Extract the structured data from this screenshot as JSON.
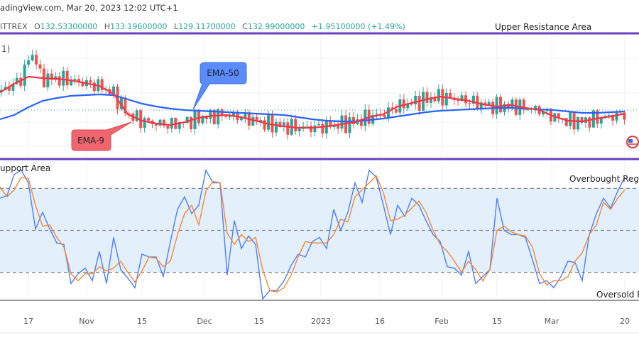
{
  "header": {
    "source_text": "adingView.com, Mar 20, 2023 12:02 UTC+1"
  },
  "ohlc": {
    "exchange": "ITTREX",
    "open_label": "O",
    "open": "132.53300000",
    "high_label": "H",
    "high": "133.19600000",
    "low_label": "L",
    "low": "129.11700000",
    "close_label": "C",
    "close": "132.99000000",
    "change": "+1.95100000 (+1.49%)"
  },
  "price_panel": {
    "indicator_fragment": "1)",
    "upper_label": "Upper Resistance Area",
    "ema50_label": "EMA-50",
    "ema9_label": "EMA-9"
  },
  "osc_panel": {
    "support_label": "upport Area",
    "overbought_label": "Overbought Regio",
    "oversold_label": "Oversold R"
  },
  "colors": {
    "up": "#26a69a",
    "down": "#ef5350",
    "ema9": "#f23645",
    "ema50": "#2962ff",
    "k": "#4d7cfe",
    "d": "#f5862f",
    "frame": "#6b3fc2",
    "band": "#e3f0fc",
    "ema50_box": "#5b8cff",
    "ema9_box": "#f0666f"
  },
  "chart_data": [
    {
      "type": "line",
      "title": "",
      "x_ticks": [
        "17",
        "Nov",
        "15",
        "Dec",
        "15",
        "2023",
        "16",
        "Feb",
        "15",
        "Mar",
        "20"
      ],
      "last_price": 132.99,
      "series": [
        {
          "name": "EMA-9",
          "values": [
            138.4,
            140.8,
            142.8,
            142.4,
            142.2,
            141.8,
            141.0,
            140.2,
            138.0,
            132.2,
            130.4,
            129.6,
            129.2,
            130.0,
            131.2,
            131.8,
            132.0,
            131.4,
            130.4,
            129.4,
            128.8,
            128.4,
            128.4,
            128.8,
            129.4,
            130.0,
            131.4,
            132.2,
            134.4,
            135.4,
            136.4,
            137.2,
            136.6,
            136.0,
            135.0,
            134.4,
            134.8,
            134.0,
            133.4,
            131.6,
            130.4,
            130.2,
            131.0,
            131.6,
            132.4
          ]
        },
        {
          "name": "EMA-50",
          "values": [
            130.8,
            132.0,
            134.2,
            136.0,
            136.8,
            137.4,
            137.6,
            137.8,
            137.6,
            136.4,
            135.2,
            134.4,
            133.8,
            133.4,
            133.2,
            133.0,
            132.8,
            132.6,
            132.4,
            132.2,
            132.0,
            131.4,
            130.8,
            130.4,
            130.2,
            130.2,
            130.6,
            131.0,
            131.6,
            132.2,
            132.8,
            133.2,
            133.4,
            133.6,
            133.8,
            134.0,
            134.0,
            133.8,
            133.6,
            133.4,
            133.0,
            132.6,
            132.6,
            132.8,
            133.0
          ]
        }
      ]
    },
    {
      "type": "line",
      "title": "",
      "ylim": [
        0,
        100
      ],
      "levels": [
        80,
        50,
        20
      ],
      "x_ticks": [
        "17",
        "Nov",
        "15",
        "Dec",
        "15",
        "2023",
        "16",
        "Feb",
        "15",
        "Mar",
        "20"
      ],
      "series": [
        {
          "values": [
            73,
            75,
            90,
            93,
            84,
            51,
            63,
            51,
            41,
            40,
            12,
            19,
            23,
            14,
            35,
            12,
            45,
            22,
            16,
            9,
            33,
            31,
            31,
            17,
            42,
            65,
            74,
            62,
            68,
            93,
            84,
            84,
            18,
            57,
            37,
            46,
            40,
            1,
            7,
            7,
            14,
            25,
            33,
            31,
            42,
            45,
            37,
            65,
            50,
            63,
            84,
            70,
            93,
            88,
            68,
            47,
            68,
            60,
            73,
            68,
            57,
            47,
            42,
            24,
            23,
            18,
            35,
            12,
            17,
            22,
            73,
            50,
            47,
            47,
            45,
            29,
            12,
            14,
            9,
            17,
            28,
            27,
            14,
            47,
            62,
            73,
            66,
            78,
            88
          ]
        },
        {
          "values": [
            81,
            74,
            79,
            88,
            87,
            68,
            53,
            54,
            45,
            38,
            19,
            14,
            19,
            19,
            24,
            21,
            23,
            28,
            20,
            13,
            21,
            31,
            30,
            24,
            28,
            47,
            62,
            68,
            54,
            78,
            85,
            84,
            48,
            40,
            47,
            42,
            45,
            22,
            7,
            6,
            9,
            18,
            31,
            42,
            41,
            41,
            41,
            47,
            58,
            56,
            74,
            79,
            84,
            89,
            77,
            57,
            58,
            61,
            66,
            71,
            63,
            50,
            40,
            35,
            28,
            20,
            28,
            22,
            14,
            22,
            50,
            53,
            49,
            47,
            46,
            38,
            19,
            11,
            14,
            14,
            17,
            28,
            34,
            47,
            54,
            70,
            65,
            73,
            79
          ]
        }
      ]
    }
  ]
}
